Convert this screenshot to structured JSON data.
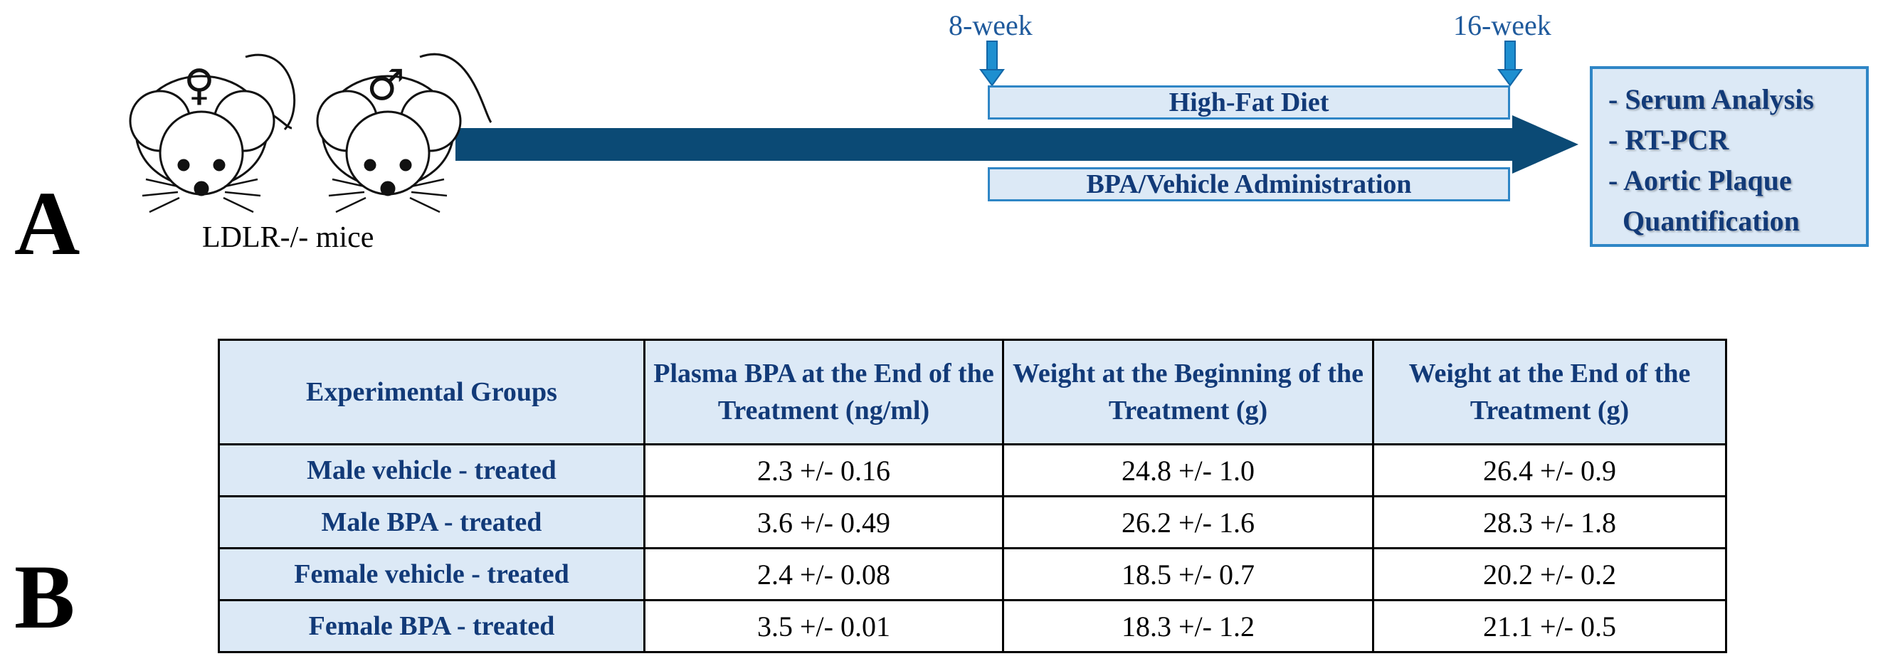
{
  "panel_a": {
    "letter": "A",
    "mice_label": "LDLR-/- mice",
    "female_symbol": "♀",
    "male_symbol": "♂",
    "start_week": "8-week",
    "end_week": "16-week",
    "diet_label": "High-Fat Diet",
    "administration_label": "BPA/Vehicle Administration",
    "outcomes": [
      "- Serum Analysis",
      "- RT-PCR",
      "- Aortic Plaque",
      "  Quantification"
    ],
    "colors": {
      "arrow": "#0b4a75",
      "box_fill": "#dce9f6",
      "box_border": "#2f86c6",
      "text": "#123a78"
    }
  },
  "panel_b": {
    "letter": "B",
    "headers": [
      "Experimental Groups",
      "Plasma BPA at the End of the Treatment (ng/ml)",
      "Weight at the Beginning of the Treatment (g)",
      "Weight at the End of the Treatment (g)"
    ],
    "rows": [
      [
        "Male vehicle - treated",
        "2.3 +/- 0.16",
        "24.8 +/- 1.0",
        "26.4 +/- 0.9"
      ],
      [
        "Male BPA - treated",
        "3.6 +/- 0.49",
        "26.2 +/- 1.6",
        "28.3 +/- 1.8"
      ],
      [
        "Female vehicle - treated",
        "2.4 +/- 0.08",
        "18.5 +/-  0.7",
        "20.2 +/- 0.2"
      ],
      [
        "Female BPA - treated",
        "3.5 +/- 0.01",
        "18.3 +/- 1.2",
        "21.1 +/- 0.5"
      ]
    ]
  }
}
